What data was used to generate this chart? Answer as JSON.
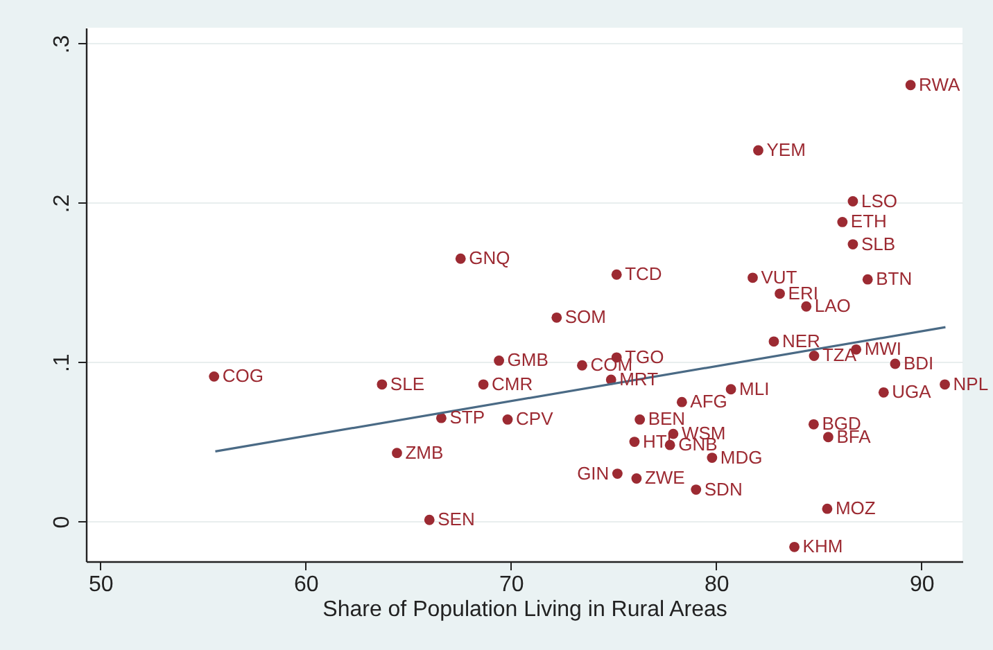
{
  "chart_data": {
    "type": "scatter",
    "xlabel": "Share of Population Living in Rural Areas",
    "xlim": [
      49.3,
      92.0
    ],
    "ylim": [
      -0.025,
      0.31
    ],
    "xticks": [
      50,
      60,
      70,
      80,
      90
    ],
    "yticks": [
      {
        "value": 0,
        "label": "0"
      },
      {
        "value": 0.1,
        "label": ".1"
      },
      {
        "value": 0.2,
        "label": ".2"
      },
      {
        "value": 0.3,
        "label": ".3"
      }
    ],
    "grid": "y",
    "series": [
      {
        "type": "scatter",
        "marker": "circle",
        "color": "#9c2a32",
        "x": [
          89.47,
          82.05,
          86.66,
          86.15,
          86.66,
          87.38,
          81.78,
          83.1,
          84.39,
          75.15,
          72.23,
          67.55,
          55.54,
          63.72,
          66.61,
          64.45,
          66.03,
          68.66,
          69.42,
          69.84,
          73.47,
          75.15,
          74.88,
          78.33,
          80.72,
          76.28,
          76.02,
          77.91,
          77.75,
          79.8,
          75.19,
          76.12,
          79.02,
          82.81,
          84.77,
          86.82,
          88.72,
          88.16,
          91.14,
          84.75,
          85.46,
          85.41,
          83.81
        ],
        "values": [
          0.274,
          0.233,
          0.201,
          0.188,
          0.174,
          0.152,
          0.153,
          0.143,
          0.135,
          0.155,
          0.128,
          0.165,
          0.091,
          0.086,
          0.065,
          0.043,
          0.001,
          0.086,
          0.101,
          0.064,
          0.098,
          0.103,
          0.089,
          0.075,
          0.083,
          0.064,
          0.05,
          0.055,
          0.048,
          0.04,
          0.03,
          0.027,
          0.02,
          0.113,
          0.104,
          0.108,
          0.099,
          0.081,
          0.086,
          0.061,
          0.053,
          0.008,
          -0.016
        ]
      },
      {
        "type": "line",
        "color": "#4a6a85",
        "x": [
          55.6,
          91.17
        ],
        "values": [
          0.044,
          0.122
        ]
      }
    ],
    "annotations": [
      {
        "text": "RWA",
        "x": 89.47,
        "y": 0.274
      },
      {
        "text": "YEM",
        "x": 82.05,
        "y": 0.233
      },
      {
        "text": "LSO",
        "x": 86.66,
        "y": 0.201
      },
      {
        "text": "ETH",
        "x": 86.15,
        "y": 0.188
      },
      {
        "text": "SLB",
        "x": 86.66,
        "y": 0.174
      },
      {
        "text": "BTN",
        "x": 87.38,
        "y": 0.152
      },
      {
        "text": "VUT",
        "x": 81.78,
        "y": 0.153
      },
      {
        "text": "ERI",
        "x": 83.1,
        "y": 0.143
      },
      {
        "text": "LAO",
        "x": 84.39,
        "y": 0.135
      },
      {
        "text": "TCD",
        "x": 75.15,
        "y": 0.155
      },
      {
        "text": "SOM",
        "x": 72.23,
        "y": 0.128
      },
      {
        "text": "GNQ",
        "x": 67.55,
        "y": 0.165
      },
      {
        "text": "COG",
        "x": 55.54,
        "y": 0.091
      },
      {
        "text": "SLE",
        "x": 63.72,
        "y": 0.086
      },
      {
        "text": "STP",
        "x": 66.61,
        "y": 0.065
      },
      {
        "text": "ZMB",
        "x": 64.45,
        "y": 0.043
      },
      {
        "text": "SEN",
        "x": 66.03,
        "y": 0.001
      },
      {
        "text": "CMR",
        "x": 68.66,
        "y": 0.086
      },
      {
        "text": "GMB",
        "x": 69.42,
        "y": 0.101
      },
      {
        "text": "CPV",
        "x": 69.84,
        "y": 0.064
      },
      {
        "text": "COM",
        "x": 73.47,
        "y": 0.098
      },
      {
        "text": "TGO",
        "x": 75.15,
        "y": 0.103
      },
      {
        "text": "MRT",
        "x": 74.88,
        "y": 0.089
      },
      {
        "text": "AFG",
        "x": 78.33,
        "y": 0.075
      },
      {
        "text": "MLI",
        "x": 80.72,
        "y": 0.083
      },
      {
        "text": "BEN",
        "x": 76.28,
        "y": 0.064
      },
      {
        "text": "HTI",
        "x": 76.02,
        "y": 0.05
      },
      {
        "text": "WSM",
        "x": 77.91,
        "y": 0.055
      },
      {
        "text": "GNB",
        "x": 77.75,
        "y": 0.048
      },
      {
        "text": "MDG",
        "x": 79.8,
        "y": 0.04
      },
      {
        "text": "GIN",
        "x": 75.19,
        "y": 0.03
      },
      {
        "text": "ZWE",
        "x": 76.12,
        "y": 0.027
      },
      {
        "text": "SDN",
        "x": 79.02,
        "y": 0.02
      },
      {
        "text": "NER",
        "x": 82.81,
        "y": 0.113
      },
      {
        "text": "TZA",
        "x": 84.77,
        "y": 0.104
      },
      {
        "text": "MWI",
        "x": 86.82,
        "y": 0.108
      },
      {
        "text": "BDI",
        "x": 88.72,
        "y": 0.099
      },
      {
        "text": "UGA",
        "x": 88.16,
        "y": 0.081
      },
      {
        "text": "NPL",
        "x": 91.14,
        "y": 0.086
      },
      {
        "text": "BGD",
        "x": 84.75,
        "y": 0.061
      },
      {
        "text": "BFA",
        "x": 85.46,
        "y": 0.053
      },
      {
        "text": "MOZ",
        "x": 85.41,
        "y": 0.008
      },
      {
        "text": "KHM",
        "x": 83.81,
        "y": -0.016
      }
    ]
  }
}
